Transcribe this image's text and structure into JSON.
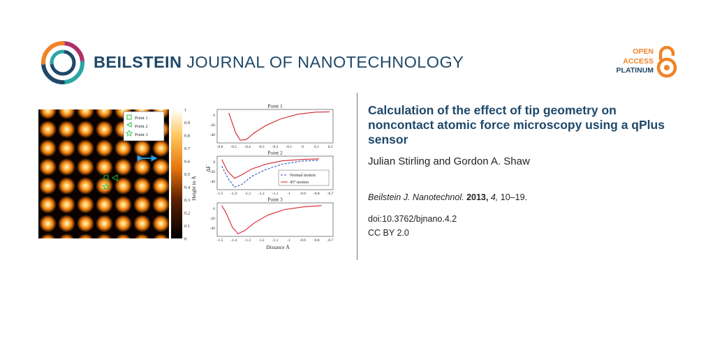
{
  "header": {
    "journal_strong": "BEILSTEIN",
    "journal_rest": "JOURNAL OF NANOTECHNOLOGY",
    "open_access": [
      "OPEN",
      "ACCESS",
      "PLATINUM"
    ]
  },
  "colors": {
    "navy": "#1f4869",
    "orange": "#f08326",
    "teal": "#2aa6a6",
    "magenta": "#b0306a",
    "curve_red": "#d6202f",
    "curve_blue": "#2a4fb5"
  },
  "figure": {
    "map": {
      "legend": [
        "Point 1",
        "Point 2",
        "Point 3"
      ],
      "colorbar_ticks": [
        "1",
        "0.9",
        "0.8",
        "0.7",
        "0.6",
        "0.5",
        "0.4",
        "0.3",
        "0.2",
        "0.1",
        "0"
      ],
      "colorbar_label": "Height in Å"
    },
    "plots": [
      {
        "title": "Point 1",
        "x_ticks": [
          "-0.6",
          "-0.5",
          "-0.4",
          "-0.3",
          "-0.2",
          "-0.1",
          "0",
          "0.1",
          "0.2"
        ],
        "y_ticks": [
          "0",
          "-20",
          "-40"
        ]
      },
      {
        "title": "Point 2",
        "x_ticks": [
          "-1.5",
          "-1.4",
          "-1.3",
          "-1.2",
          "-1.1",
          "-1",
          "-0.9",
          "-0.8",
          "-0.7"
        ],
        "y_ticks": [
          "0",
          "-20",
          "-40"
        ],
        "legend": [
          "Normal motion",
          "45° motion"
        ],
        "ylabel": "ΔF"
      },
      {
        "title": "Point 3",
        "x_ticks": [
          "-1.5",
          "-1.4",
          "-1.3",
          "-1.2",
          "-1.1",
          "-1",
          "-0.9",
          "-0.8",
          "-0.7"
        ],
        "y_ticks": [
          "0",
          "-20",
          "-40"
        ],
        "xlabel": "Distance Å"
      }
    ]
  },
  "article": {
    "title": "Calculation of the effect of tip geometry on noncontact atomic force microscopy using a qPlus sensor",
    "authors": "Julian Stirling and Gordon A. Shaw",
    "citation": {
      "journal": "Beilstein J. Nanotechnol.",
      "year": "2013,",
      "volume": "4,",
      "pages": "10–19."
    },
    "doi": "doi:10.3762/bjnano.4.2",
    "license": "CC BY 2.0"
  }
}
